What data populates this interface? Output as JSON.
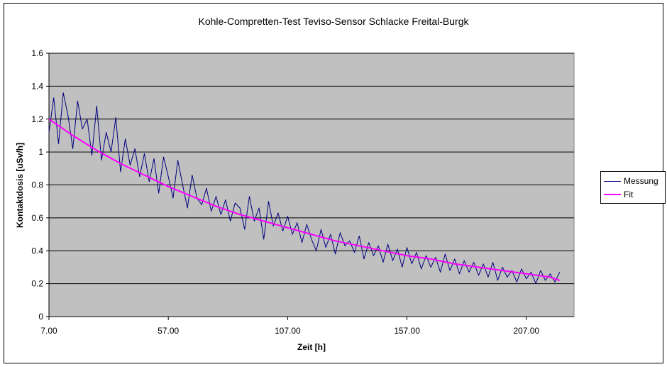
{
  "chart_data": {
    "type": "line",
    "title": "Kohle-Compretten-Test Teviso-Sensor    Schlacke Freital-Burgk",
    "xlabel": "Zeit [h]",
    "ylabel": "Kontaktdosis [uSv/h]",
    "xlim": [
      7,
      227
    ],
    "ylim": [
      0,
      1.6
    ],
    "x_ticks": [
      "7.00",
      "57.00",
      "107.00",
      "157.00",
      "207.00"
    ],
    "y_ticks": [
      "0",
      "0.2",
      "0.4",
      "0.6",
      "0.8",
      "1",
      "1.2",
      "1.4",
      "1.6"
    ],
    "grid": true,
    "legend_position": "right",
    "plot_background": "#c0c0c0",
    "series": [
      {
        "name": "Messung",
        "color": "#000080",
        "x": [
          7,
          9,
          11,
          13,
          15,
          17,
          19,
          21,
          23,
          25,
          27,
          29,
          31,
          33,
          35,
          37,
          39,
          41,
          43,
          45,
          47,
          49,
          51,
          53,
          55,
          57,
          59,
          61,
          63,
          65,
          67,
          69,
          71,
          73,
          75,
          77,
          79,
          81,
          83,
          85,
          87,
          89,
          91,
          93,
          95,
          97,
          99,
          101,
          103,
          105,
          107,
          109,
          111,
          113,
          115,
          117,
          119,
          121,
          123,
          125,
          127,
          129,
          131,
          133,
          135,
          137,
          139,
          141,
          143,
          145,
          147,
          149,
          151,
          153,
          155,
          157,
          159,
          161,
          163,
          165,
          167,
          169,
          171,
          173,
          175,
          177,
          179,
          181,
          183,
          185,
          187,
          189,
          191,
          193,
          195,
          197,
          199,
          201,
          203,
          205,
          207,
          209,
          211,
          213,
          215,
          217,
          219,
          221
        ],
        "y": [
          1.12,
          1.33,
          1.05,
          1.36,
          1.22,
          1.02,
          1.31,
          1.14,
          1.2,
          0.98,
          1.28,
          0.95,
          1.12,
          1.0,
          1.21,
          0.88,
          1.08,
          0.92,
          1.02,
          0.85,
          0.99,
          0.82,
          0.96,
          0.75,
          0.97,
          0.85,
          0.72,
          0.95,
          0.8,
          0.66,
          0.86,
          0.72,
          0.68,
          0.78,
          0.64,
          0.73,
          0.62,
          0.71,
          0.58,
          0.69,
          0.66,
          0.53,
          0.73,
          0.58,
          0.66,
          0.47,
          0.7,
          0.55,
          0.63,
          0.52,
          0.61,
          0.5,
          0.57,
          0.45,
          0.56,
          0.47,
          0.4,
          0.53,
          0.42,
          0.5,
          0.38,
          0.51,
          0.43,
          0.46,
          0.39,
          0.49,
          0.35,
          0.45,
          0.37,
          0.43,
          0.33,
          0.44,
          0.34,
          0.41,
          0.3,
          0.42,
          0.32,
          0.39,
          0.29,
          0.37,
          0.3,
          0.36,
          0.27,
          0.38,
          0.28,
          0.35,
          0.26,
          0.34,
          0.27,
          0.33,
          0.25,
          0.32,
          0.24,
          0.33,
          0.22,
          0.3,
          0.24,
          0.28,
          0.21,
          0.29,
          0.23,
          0.27,
          0.2,
          0.28,
          0.22,
          0.26,
          0.21,
          0.27
        ]
      },
      {
        "name": "Fit",
        "color": "#ff00ff",
        "x": [
          7,
          17,
          27,
          37,
          47,
          57,
          67,
          77,
          87,
          97,
          107,
          117,
          127,
          137,
          147,
          157,
          167,
          177,
          187,
          197,
          207,
          217,
          221
        ],
        "y": [
          1.2,
          1.1,
          1.01,
          0.93,
          0.86,
          0.79,
          0.73,
          0.67,
          0.62,
          0.58,
          0.54,
          0.5,
          0.46,
          0.43,
          0.4,
          0.37,
          0.35,
          0.32,
          0.3,
          0.28,
          0.26,
          0.24,
          0.22
        ]
      }
    ]
  }
}
